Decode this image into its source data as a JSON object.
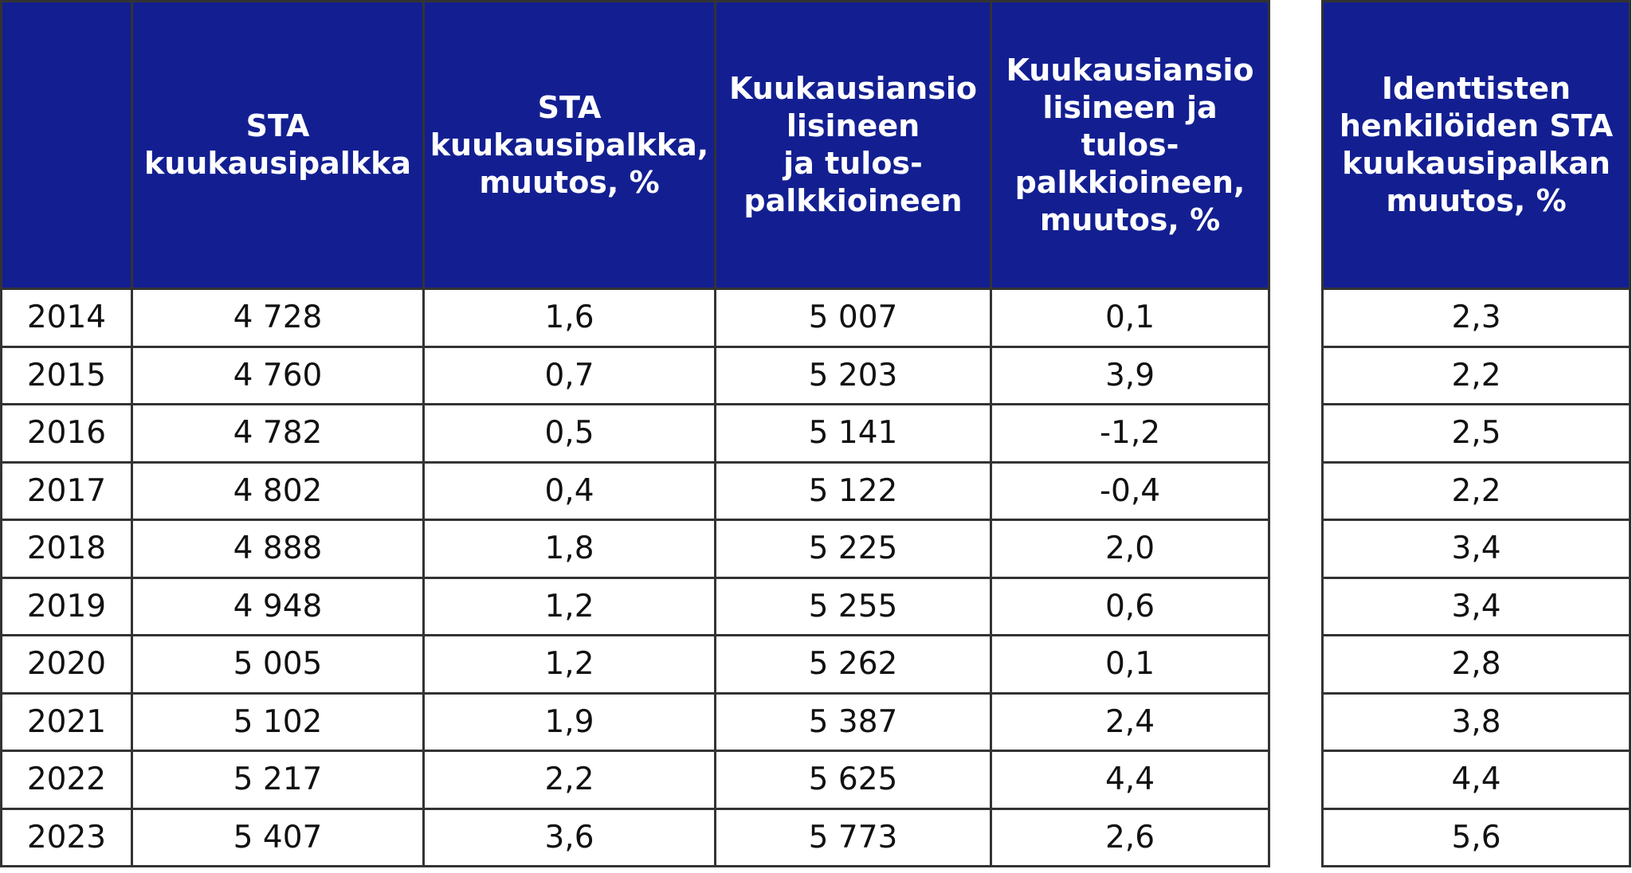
{
  "colors": {
    "header_background": "#131f91",
    "header_text": "#ffffff",
    "grid_line": "#333333",
    "cell_background": "#ffffff"
  },
  "table": {
    "headers": [
      {
        "lines": [
          ""
        ]
      },
      {
        "lines": [
          "STA",
          "kuukausipalkka"
        ]
      },
      {
        "lines": [
          "STA",
          "kuukausipalkka,",
          "muutos, %"
        ]
      },
      {
        "lines": [
          "Kuukausiansio",
          "lisineen",
          "ja tulos-",
          "palkkioineen"
        ]
      },
      {
        "lines": [
          "Kuukausiansio",
          "lisineen ja",
          "tulos-",
          "palkkioineen,",
          "muutos, %"
        ]
      }
    ],
    "rows": [
      [
        "2014",
        "4 728",
        "1,6",
        "5 007",
        "0,1"
      ],
      [
        "2015",
        "4 760",
        "0,7",
        "5 203",
        "3,9"
      ],
      [
        "2016",
        "4 782",
        "0,5",
        "5 141",
        "-1,2"
      ],
      [
        "2017",
        "4 802",
        "0,4",
        "5 122",
        "-0,4"
      ],
      [
        "2018",
        "4 888",
        "1,8",
        "5 225",
        "2,0"
      ],
      [
        "2019",
        "4 948",
        "1,2",
        "5 255",
        "0,6"
      ],
      [
        "2020",
        "5 005",
        "1,2",
        "5 262",
        "0,1"
      ],
      [
        "2021",
        "5 102",
        "1,9",
        "5 387",
        "2,4"
      ],
      [
        "2022",
        "5 217",
        "2,2",
        "5 625",
        "4,4"
      ],
      [
        "2023",
        "5 407",
        "3,6",
        "5 773",
        "2,6"
      ]
    ]
  },
  "side_table": {
    "header": {
      "lines": [
        "Identtisten",
        "henkilöiden STA",
        "kuukausipalkan",
        "muutos, %"
      ]
    },
    "rows": [
      "2,3",
      "2,2",
      "2,5",
      "2,2",
      "3,4",
      "3,4",
      "2,8",
      "3,8",
      "4,4",
      "5,6"
    ]
  }
}
